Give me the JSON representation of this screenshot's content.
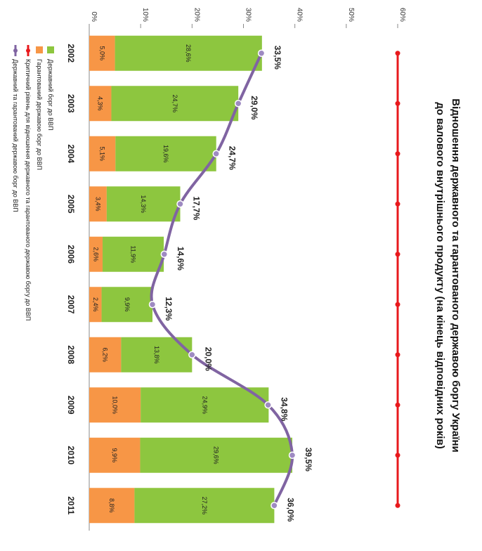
{
  "chart_data": {
    "type": "bar",
    "stacked": true,
    "title_line1": "Відношення державного та гарантованого державою боргу України",
    "title_line2": "до валового внутрішнього продукту (на кінець відповідних років)",
    "categories": [
      "2002",
      "2003",
      "2004",
      "2005",
      "2006",
      "2007",
      "2008",
      "2009",
      "2010",
      "2011"
    ],
    "ylim": [
      0,
      60
    ],
    "yticks": [
      "0%",
      "10%",
      "20%",
      "30%",
      "40%",
      "50%",
      "60%"
    ],
    "yticks_values": [
      0,
      10,
      20,
      30,
      40,
      50,
      60
    ],
    "critical_level": 60,
    "series": [
      {
        "name": "Гарантований державою борг до ВВП",
        "color": "#f79646",
        "values": [
          5.0,
          4.3,
          5.1,
          3.4,
          2.6,
          2.4,
          6.2,
          10.0,
          9.9,
          8.8
        ],
        "labels": [
          "5,0%",
          "4,3%",
          "5,1%",
          "3,4%",
          "2,6%",
          "2,4%",
          "6,2%",
          "10,0%",
          "9,9%",
          "8,8%"
        ]
      },
      {
        "name": "Державний борг до ВВП",
        "color": "#8dc63f",
        "values": [
          28.6,
          24.7,
          19.6,
          14.3,
          11.9,
          9.9,
          13.8,
          24.9,
          29.6,
          27.2
        ],
        "labels": [
          "28,6%",
          "24,7%",
          "19,6%",
          "14,3%",
          "11,9%",
          "9,9%",
          "13,8%",
          "24,9%",
          "29,6%",
          "27,2%"
        ]
      },
      {
        "name": "Критичний рівень для відношення державного та гарантованого державою боргу до ВВП",
        "color": "#e8191c"
      },
      {
        "name": "Державний та гарантований державою борг до ВВП",
        "color": "#8064a2",
        "values": [
          33.5,
          29.0,
          24.7,
          17.7,
          14.6,
          12.3,
          20.0,
          34.8,
          39.5,
          36.0
        ],
        "labels": [
          "33,5%",
          "29,0%",
          "24,7%",
          "17,7%",
          "14,6%",
          "12,3%",
          "20,0%",
          "34,8%",
          "39,5%",
          "36,0%"
        ]
      }
    ],
    "legend_order": [
      1,
      0,
      2,
      3
    ]
  }
}
